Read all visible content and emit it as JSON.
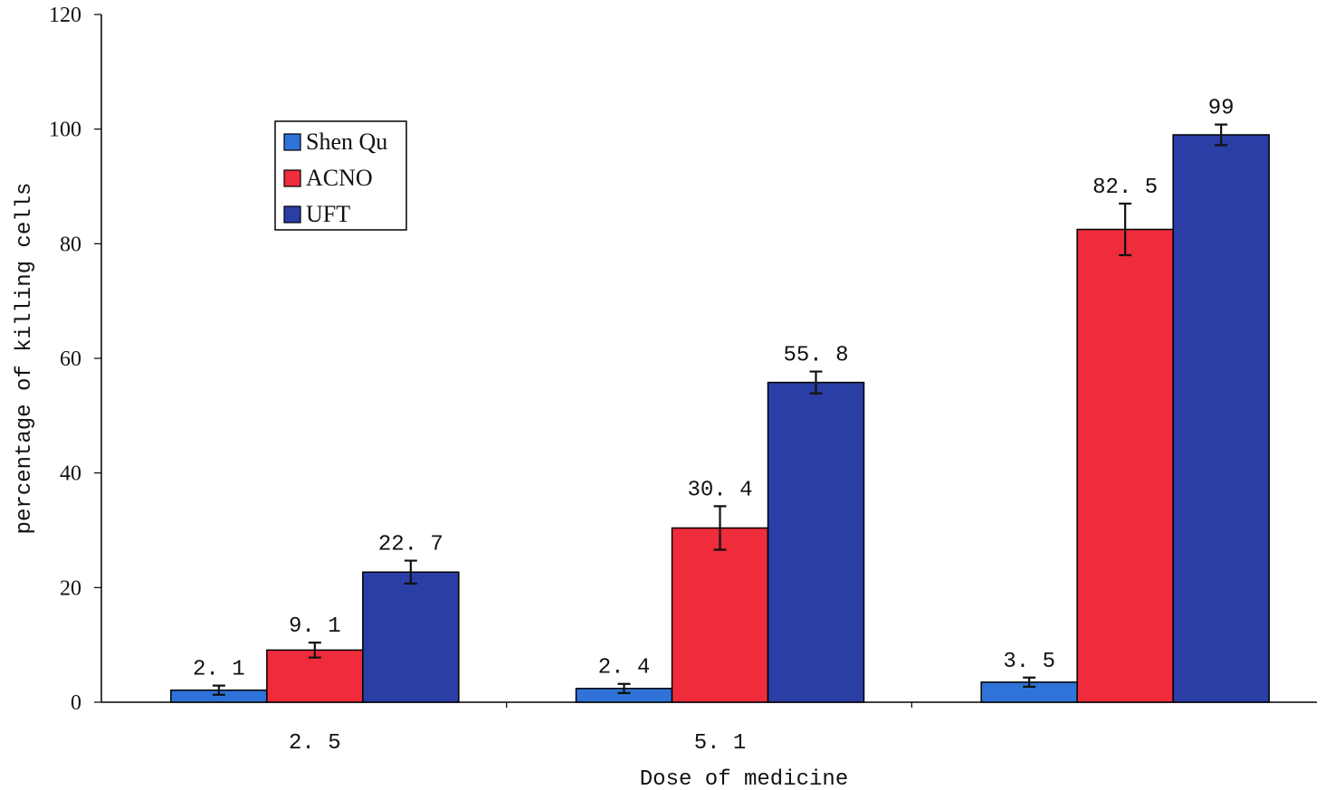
{
  "chart_data": {
    "type": "bar",
    "title": "",
    "xlabel": "Dose of medicine",
    "ylabel": "percentage of killing cells",
    "ylim": [
      0,
      120
    ],
    "yticks": [
      0,
      20,
      40,
      60,
      80,
      100,
      120
    ],
    "categories": [
      "2.5",
      "5.1",
      ""
    ],
    "category_labels": [
      "2. 5",
      "5. 1",
      ""
    ],
    "series": [
      {
        "name": "Shen Qu",
        "color": "#2f73d9",
        "values": [
          2.1,
          2.4,
          3.5
        ],
        "errors": [
          0.8,
          0.8,
          0.8
        ],
        "labels": [
          "2. 1",
          "2. 4",
          "3. 5"
        ]
      },
      {
        "name": "ACNO",
        "color": "#ee2c3c",
        "values": [
          9.1,
          30.4,
          82.5
        ],
        "errors": [
          1.3,
          3.8,
          4.5
        ],
        "labels": [
          "9. 1",
          "30. 4",
          "82. 5"
        ]
      },
      {
        "name": "UFT",
        "color": "#2a3ea5",
        "values": [
          22.7,
          55.8,
          99
        ],
        "errors": [
          2.0,
          1.9,
          1.8
        ],
        "labels": [
          "22. 7",
          "55. 8",
          "99"
        ]
      }
    ],
    "legend_position": "top-left",
    "grid": false
  }
}
